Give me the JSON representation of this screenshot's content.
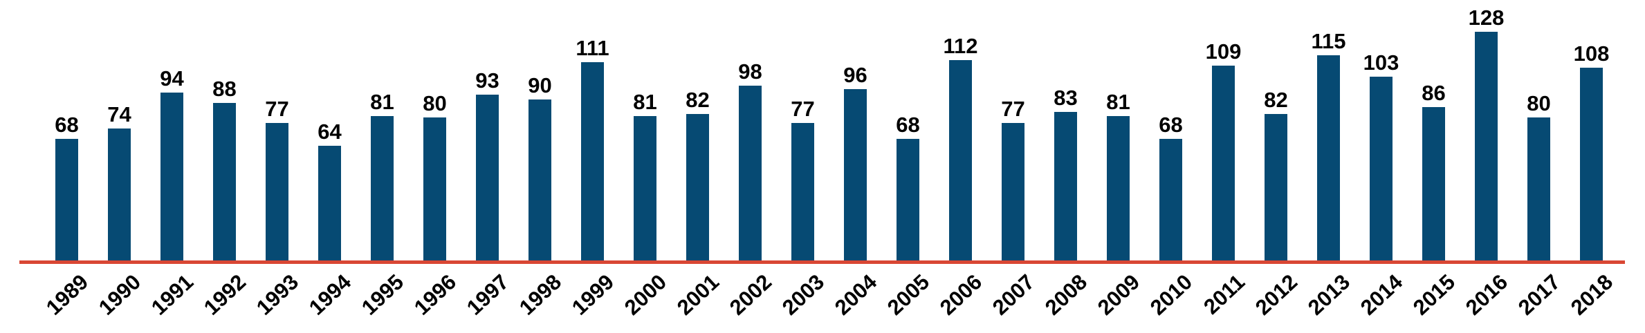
{
  "chart_data": {
    "type": "bar",
    "categories": [
      "1989",
      "1990",
      "1991",
      "1992",
      "1993",
      "1994",
      "1995",
      "1996",
      "1997",
      "1998",
      "1999",
      "2000",
      "2001",
      "2002",
      "2003",
      "2004",
      "2005",
      "2006",
      "2007",
      "2008",
      "2009",
      "2010",
      "2011",
      "2012",
      "2013",
      "2014",
      "2015",
      "2016",
      "2017",
      "2018"
    ],
    "values": [
      68,
      74,
      94,
      88,
      77,
      64,
      81,
      80,
      93,
      90,
      111,
      81,
      82,
      98,
      77,
      96,
      68,
      112,
      77,
      83,
      81,
      68,
      109,
      82,
      115,
      103,
      86,
      128,
      80,
      108
    ],
    "title": "",
    "xlabel": "",
    "ylabel": "",
    "ylim": [
      0,
      130
    ],
    "grid": false,
    "legend_position": "none",
    "value_labels_shown": true,
    "bar_color": "#064a73",
    "axis_line_color": "#d94734",
    "text_color": "#000000"
  }
}
